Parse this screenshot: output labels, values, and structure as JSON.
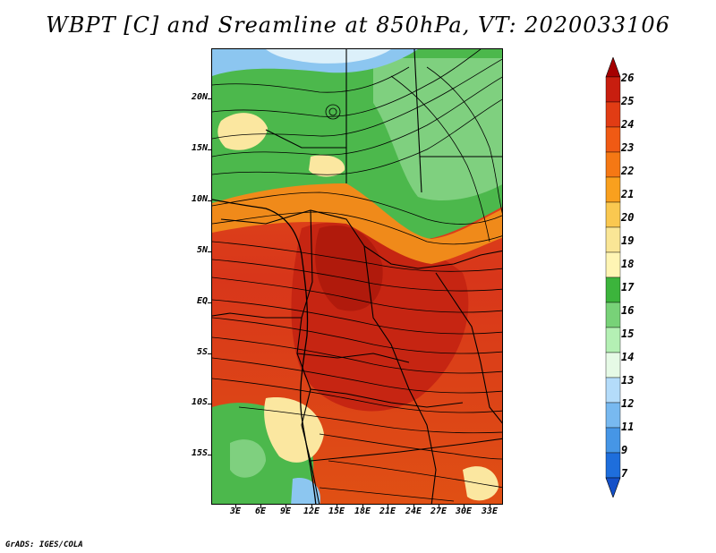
{
  "title": "WBPT [C] and Sreamline at 850hPa, VT: 2020033106",
  "footer": "GrADS: IGES/COLA",
  "map": {
    "lat_labels": [
      "20N",
      "15N",
      "10N",
      "5N",
      "EQ",
      "5S",
      "10S",
      "15S"
    ],
    "lon_labels": [
      "3E",
      "6E",
      "9E",
      "12E",
      "15E",
      "18E",
      "21E",
      "24E",
      "27E",
      "30E",
      "33E"
    ],
    "regions": {
      "cool_north": "green belt across northern domain",
      "warm_center": "red/orange core over central Africa"
    }
  },
  "colorbar": {
    "levels": [
      "26",
      "25",
      "24",
      "23",
      "22",
      "21",
      "20",
      "19",
      "18",
      "17",
      "16",
      "15",
      "14",
      "13",
      "12",
      "11",
      "9",
      "7"
    ],
    "colors": [
      "#a50000",
      "#c81e0f",
      "#e13c14",
      "#f05a14",
      "#f57814",
      "#f9a01e",
      "#fac850",
      "#fae696",
      "#fff5b4",
      "#3cb43c",
      "#78d278",
      "#b4f0b4",
      "#e6fae6",
      "#b4dcfa",
      "#78b9f0",
      "#4696e6",
      "#1e6edc",
      "#1450c8"
    ]
  }
}
